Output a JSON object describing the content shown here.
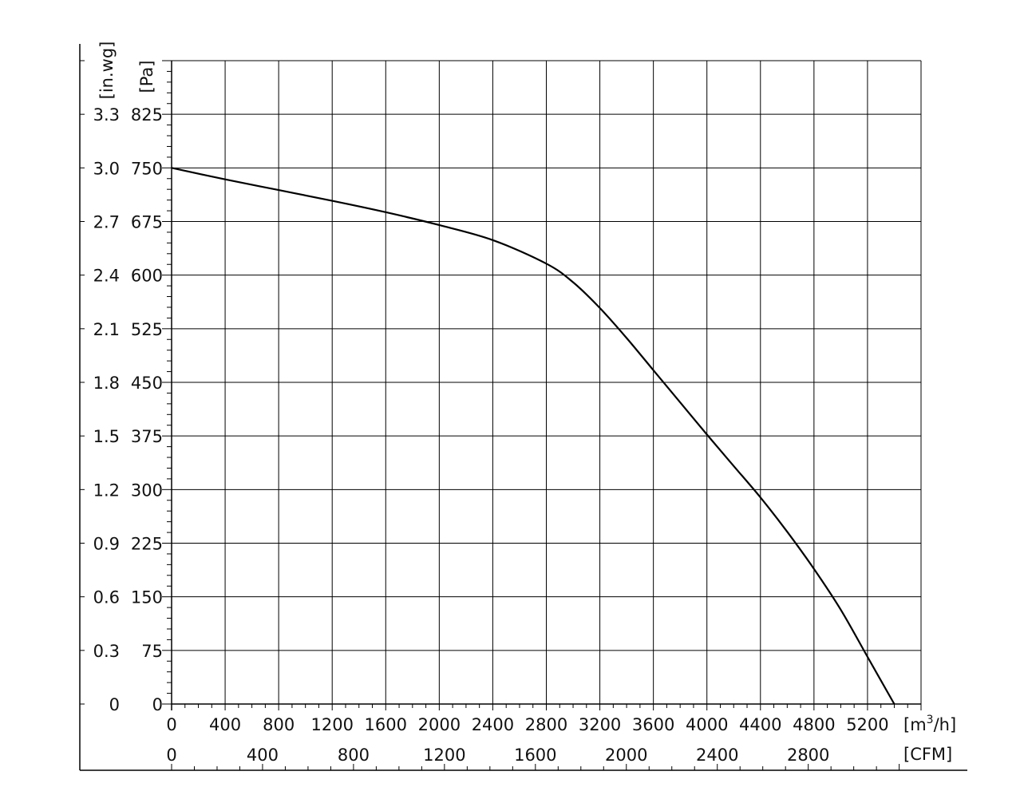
{
  "chart_data": {
    "type": "line",
    "title": "",
    "x_primary": {
      "label": "[m3/h]",
      "label_main": "[m",
      "label_sup": "3",
      "label_tail": "/h]",
      "range": [
        0,
        5600
      ],
      "ticks": [
        0,
        400,
        800,
        1200,
        1600,
        2000,
        2400,
        2800,
        3200,
        3600,
        4000,
        4400,
        4800,
        5200
      ]
    },
    "x_secondary": {
      "label": "[CFM]",
      "ticks": [
        0,
        400,
        800,
        1200,
        1600,
        2000,
        2400,
        2800
      ]
    },
    "y_primary": {
      "label": "[Pa]",
      "range": [
        0,
        900
      ],
      "ticks": [
        0,
        75,
        150,
        225,
        300,
        375,
        450,
        525,
        600,
        675,
        750,
        825
      ]
    },
    "y_secondary": {
      "label": "[in.wg]",
      "ticks": [
        "0",
        "0.3",
        "0.6",
        "0.9",
        "1.2",
        "1.5",
        "1.8",
        "2.1",
        "2.4",
        "2.7",
        "3.0",
        "3.3"
      ]
    },
    "grid": true,
    "series": [
      {
        "x": [
          0,
          400,
          800,
          1200,
          1600,
          2000,
          2400,
          2800,
          3000,
          3200,
          3400,
          3600,
          3800,
          4000,
          4200,
          4400,
          4600,
          4800,
          5000,
          5200,
          5400
        ],
        "y": [
          750,
          734,
          719,
          704,
          688,
          670,
          649,
          616,
          590,
          554,
          512,
          467,
          422,
          377,
          333,
          289,
          241,
          189,
          132,
          66,
          0
        ]
      }
    ]
  }
}
